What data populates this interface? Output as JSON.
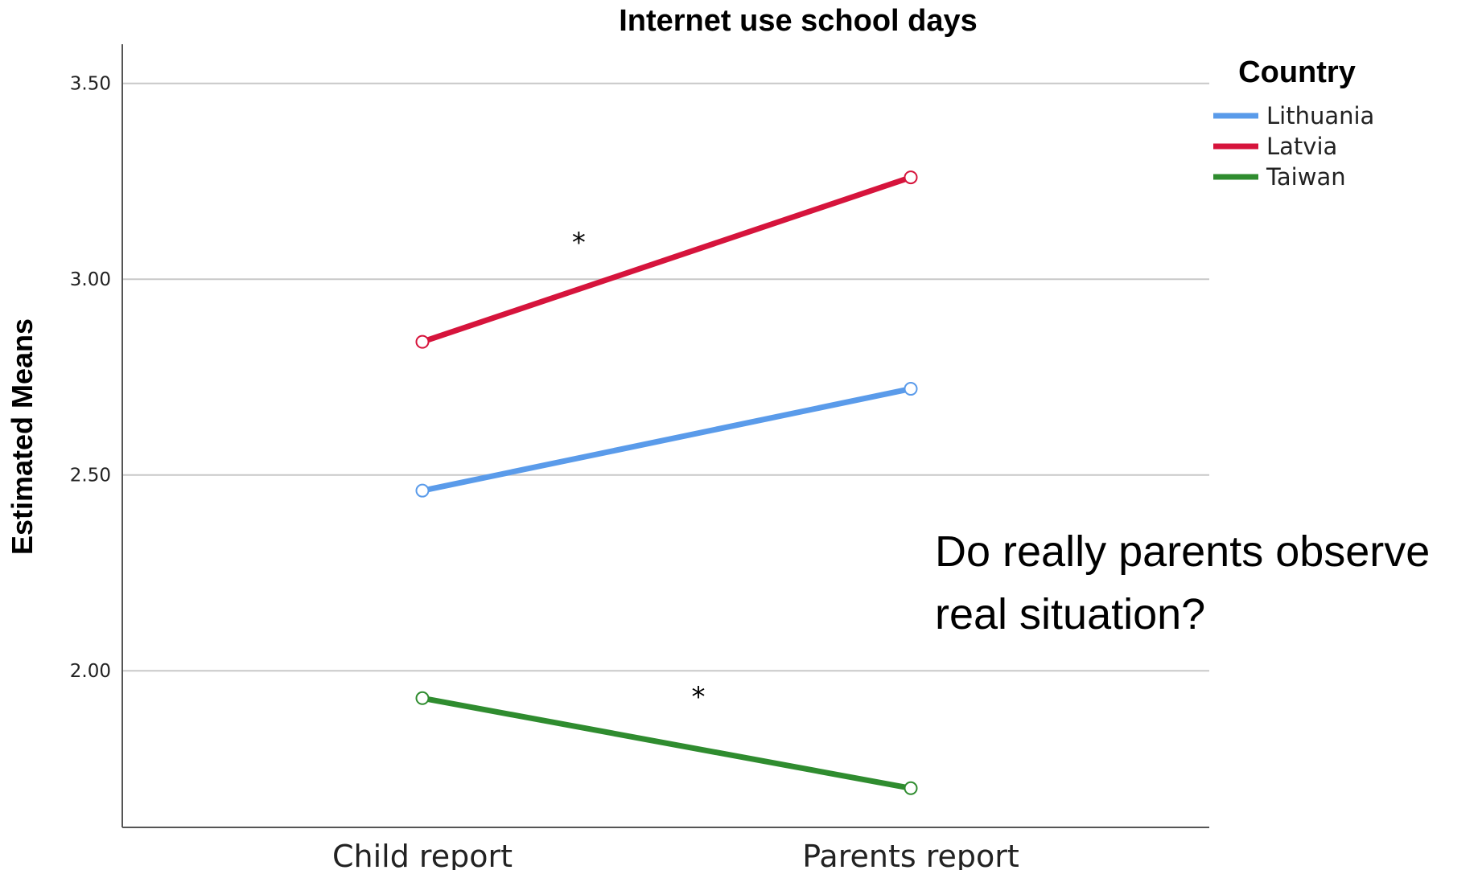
{
  "chart_data": {
    "type": "line",
    "title": "Internet use school days",
    "xlabel": "",
    "ylabel": "Estimated Means",
    "categories": [
      "Child report",
      "Parents report"
    ],
    "ylim": [
      1.6,
      3.6
    ],
    "yticks": [
      "2.00",
      "2.50",
      "3.00",
      "3.50"
    ],
    "grid": true,
    "legend": {
      "title": "Country",
      "placement": "top-right"
    },
    "series": [
      {
        "name": "Lithuania",
        "values": [
          2.46,
          2.72
        ],
        "color": "#5a9bea"
      },
      {
        "name": "Latvia",
        "values": [
          2.84,
          3.26
        ],
        "color": "#d6143c"
      },
      {
        "name": "Taiwan",
        "values": [
          1.93,
          1.7
        ],
        "color": "#2f8c2f"
      }
    ],
    "annotations": [
      {
        "text": "*",
        "x": 0.42,
        "y": 3.07
      },
      {
        "text": "*",
        "x": 0.53,
        "y": 1.91
      }
    ],
    "note": [
      "Do really parents observe",
      "real situation?"
    ]
  }
}
